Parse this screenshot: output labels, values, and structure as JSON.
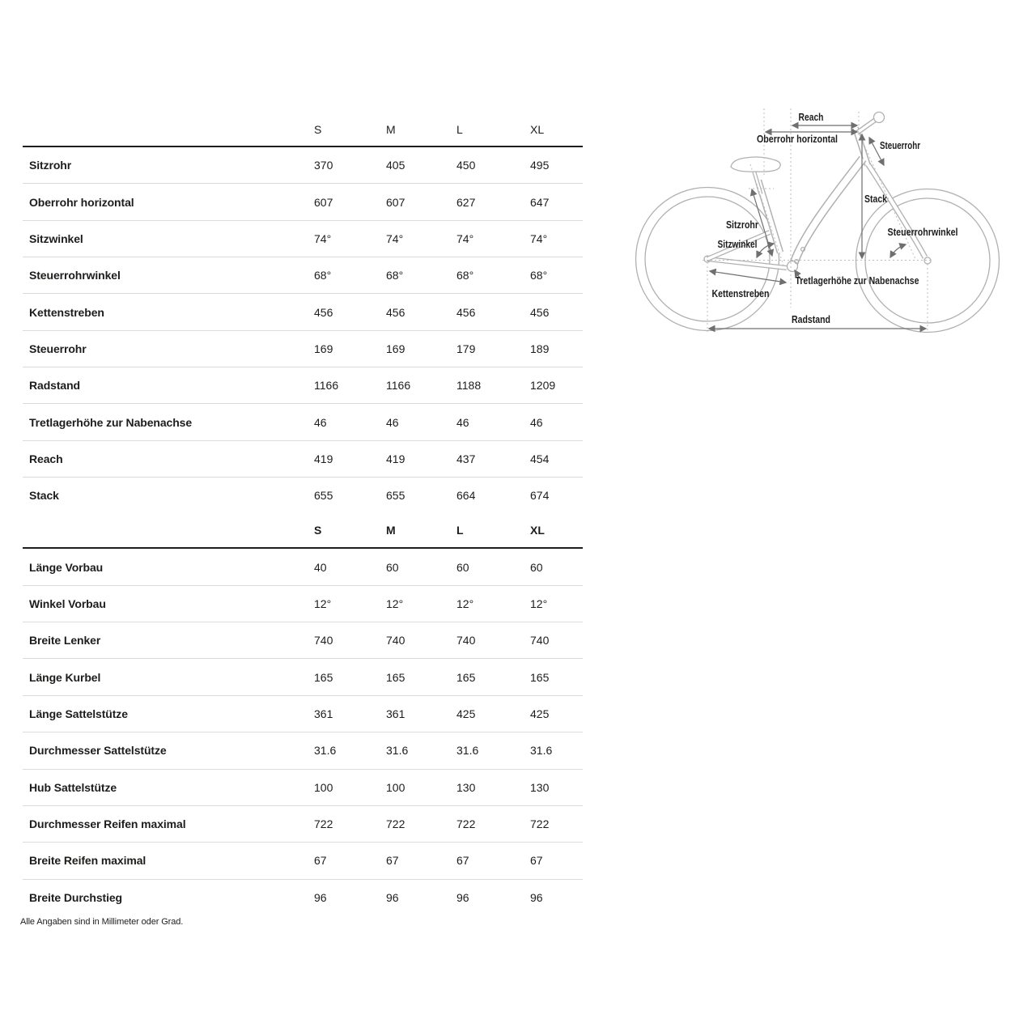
{
  "page": {
    "footnote": "Alle Angaben sind in Millimeter oder Grad."
  },
  "table": {
    "sizes": [
      "S",
      "M",
      "L",
      "XL"
    ],
    "geometry_rows": [
      {
        "label": "Sitzrohr",
        "values": [
          "370",
          "405",
          "450",
          "495"
        ]
      },
      {
        "label": "Oberrohr horizontal",
        "values": [
          "607",
          "607",
          "627",
          "647"
        ]
      },
      {
        "label": "Sitzwinkel",
        "values": [
          "74°",
          "74°",
          "74°",
          "74°"
        ]
      },
      {
        "label": "Steuerrohrwinkel",
        "values": [
          "68°",
          "68°",
          "68°",
          "68°"
        ]
      },
      {
        "label": "Kettenstreben",
        "values": [
          "456",
          "456",
          "456",
          "456"
        ]
      },
      {
        "label": "Steuerrohr",
        "values": [
          "169",
          "169",
          "179",
          "189"
        ]
      },
      {
        "label": "Radstand",
        "values": [
          "1166",
          "1166",
          "1188",
          "1209"
        ]
      },
      {
        "label": "Tretlagerhöhe zur Nabenachse",
        "values": [
          "46",
          "46",
          "46",
          "46"
        ]
      },
      {
        "label": "Reach",
        "values": [
          "419",
          "419",
          "437",
          "454"
        ]
      },
      {
        "label": "Stack",
        "values": [
          "655",
          "655",
          "664",
          "674"
        ]
      }
    ],
    "component_rows": [
      {
        "label": "Länge Vorbau",
        "values": [
          "40",
          "60",
          "60",
          "60"
        ]
      },
      {
        "label": "Winkel Vorbau",
        "values": [
          "12°",
          "12°",
          "12°",
          "12°"
        ]
      },
      {
        "label": "Breite Lenker",
        "values": [
          "740",
          "740",
          "740",
          "740"
        ]
      },
      {
        "label": "Länge Kurbel",
        "values": [
          "165",
          "165",
          "165",
          "165"
        ]
      },
      {
        "label": "Länge Sattelstütze",
        "values": [
          "361",
          "361",
          "425",
          "425"
        ]
      },
      {
        "label": "Durchmesser Sattelstütze",
        "values": [
          "31.6",
          "31.6",
          "31.6",
          "31.6"
        ]
      },
      {
        "label": "Hub Sattelstütze",
        "values": [
          "100",
          "100",
          "130",
          "130"
        ]
      },
      {
        "label": "Durchmesser Reifen maximal",
        "values": [
          "722",
          "722",
          "722",
          "722"
        ]
      },
      {
        "label": "Breite Reifen maximal",
        "values": [
          "67",
          "67",
          "67",
          "67"
        ]
      },
      {
        "label": "Breite Durchstieg",
        "values": [
          "96",
          "96",
          "96",
          "96"
        ]
      }
    ]
  },
  "diagram": {
    "labels": {
      "reach": "Reach",
      "oberrohr": "Oberrohr horizontal",
      "steuerrohr": "Steuerrohr",
      "stack": "Stack",
      "sitzrohr": "Sitzrohr",
      "sitzwinkel": "Sitzwinkel",
      "steuerrohrwinkel": "Steuerrohrwinkel",
      "tretlagerhoehe": "Tretlagerhöhe zur Nabenachse",
      "kettenstreben": "Kettenstreben",
      "radstand": "Radstand"
    },
    "colors": {
      "line_art": "#b0b0b0",
      "construction": "#bdbdbd",
      "dimension": "#6f6f6f",
      "text": "#1d1d1b"
    }
  }
}
